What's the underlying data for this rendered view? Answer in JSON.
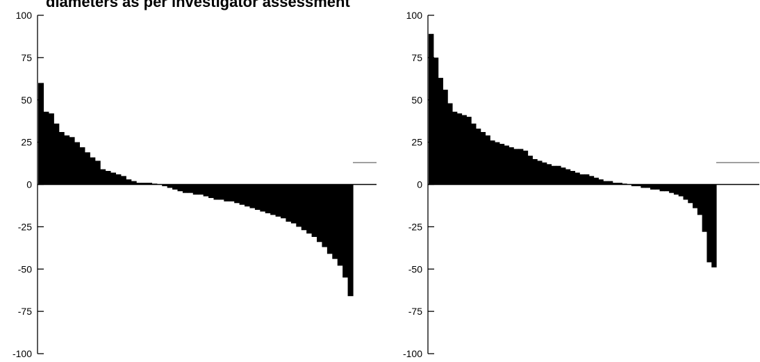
{
  "title": "diameters as per investigator assessment",
  "colors": {
    "bar": "#000000",
    "axis": "#000000",
    "legend_line": "#808080"
  },
  "chart_data": [
    {
      "type": "bar",
      "title": "",
      "xlabel": "",
      "ylabel": "",
      "ylim": [
        -100,
        100
      ],
      "yticks": [
        100,
        75,
        50,
        25,
        0,
        -25,
        -50,
        -75,
        -100
      ],
      "grid": false,
      "legend": "right",
      "series": [
        {
          "values": [
            60,
            43,
            42,
            36,
            31,
            29,
            28,
            25,
            22,
            19,
            16,
            14,
            9,
            8,
            7,
            6,
            5,
            3,
            2,
            1,
            1,
            1,
            0.5,
            0,
            -1,
            -2,
            -3,
            -4,
            -5,
            -5,
            -6,
            -6,
            -7,
            -8,
            -9,
            -9,
            -10,
            -10,
            -11,
            -12,
            -13,
            -14,
            -15,
            -16,
            -17,
            -18,
            -19,
            -20,
            -22,
            -23,
            -25,
            -27,
            -29,
            -31,
            -34,
            -37,
            -41,
            -44,
            -48,
            -55,
            -66
          ]
        }
      ]
    },
    {
      "type": "bar",
      "title": "",
      "xlabel": "",
      "ylabel": "",
      "ylim": [
        -100,
        100
      ],
      "yticks": [
        100,
        75,
        50,
        25,
        0,
        -25,
        -50,
        -75,
        -100
      ],
      "grid": false,
      "legend": "right",
      "series": [
        {
          "values": [
            89,
            75,
            63,
            56,
            48,
            43,
            42,
            41,
            40,
            36,
            33,
            31,
            29,
            26,
            25,
            24,
            23,
            22,
            21,
            21,
            20,
            17,
            15,
            14,
            13,
            12,
            11,
            11,
            10,
            9,
            8,
            7,
            6,
            6,
            5,
            4,
            3,
            2,
            2,
            1,
            1,
            0.5,
            0,
            -1,
            -1,
            -2,
            -2,
            -3,
            -3,
            -4,
            -4,
            -5,
            -6,
            -7,
            -9,
            -11,
            -14,
            -18,
            -28,
            -46,
            -49
          ]
        }
      ]
    }
  ]
}
